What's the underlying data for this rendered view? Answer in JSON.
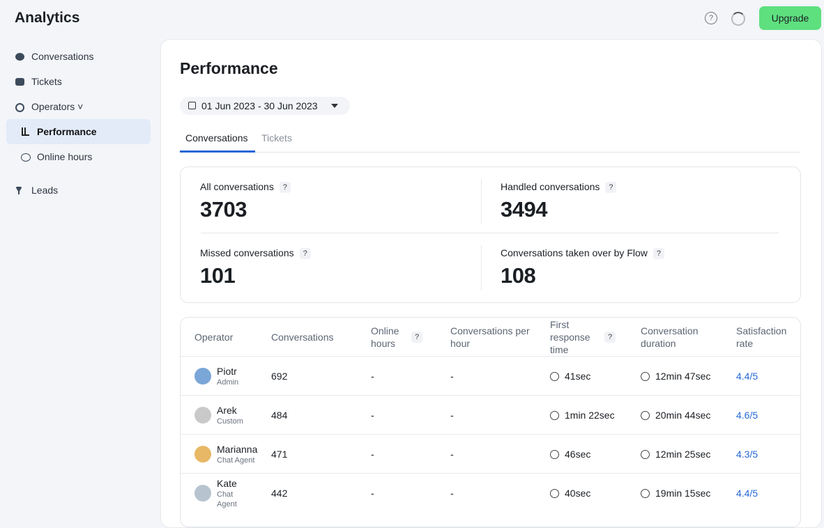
{
  "header": {
    "title": "Analytics",
    "button": "Upgrade"
  },
  "sidebar": {
    "items": [
      "Conversations",
      "Tickets",
      "Operators",
      "Performance",
      "Online hours",
      "Leads"
    ]
  },
  "page": {
    "title": "Performance",
    "date_range": "01 Jun 2023 - 30 Jun 2023",
    "tabs": [
      "Conversations",
      "Tickets"
    ]
  },
  "stats": [
    {
      "label": "All conversations",
      "value": "3703"
    },
    {
      "label": "Handled conversations",
      "value": "3494"
    },
    {
      "label": "Missed conversations",
      "value": "101"
    },
    {
      "label": "Conversations taken over by Flow",
      "value": "108"
    }
  ],
  "table": {
    "columns": [
      "Operator",
      "Conversations",
      "Online hours",
      "Conversations per hour",
      "First response time",
      "Conversation duration",
      "Satisfaction rate"
    ],
    "rows": [
      {
        "name": "Piotr",
        "role": "Admin",
        "cells": [
          "692",
          "-",
          "-",
          "41sec",
          "12min 47sec",
          "4.4/5"
        ]
      },
      {
        "name": "Arek",
        "role": "Custom",
        "cells": [
          "484",
          "-",
          "-",
          "1min 22sec",
          "20min 44sec",
          "4.6/5"
        ]
      },
      {
        "name": "Marianna",
        "role": "Chat Agent",
        "cells": [
          "471",
          "-",
          "-",
          "46sec",
          "12min 25sec",
          "4.3/5"
        ]
      },
      {
        "name": "Kate",
        "role": "Chat Agent",
        "cells": [
          "442",
          "-",
          "-",
          "40sec",
          "19min 15sec",
          "4.4/5"
        ]
      }
    ]
  }
}
